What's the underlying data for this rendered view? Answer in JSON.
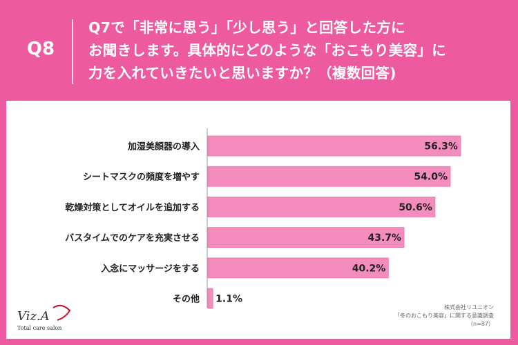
{
  "header": {
    "question_number": "Q8",
    "question_text": "Q7で「非常に思う」「少し思う」と回答した方に\nお聞きします。具体的にどのような「おこもり美容」に\n力を入れていきたいと思いますか？（複数回答)"
  },
  "colors": {
    "background": "#ed5aa0",
    "bar_fill": "#f48cbe",
    "bar_stroke": "#ee6fa8",
    "panel": "#ffffff"
  },
  "chart_data": {
    "type": "bar",
    "orientation": "horizontal",
    "categories": [
      "加湿美顔器の導入",
      "シートマスクの頻度を増やす",
      "乾燥対策としてオイルを追加する",
      "バスタイムでのケアを充実させる",
      "入念にマッサージをする",
      "その他"
    ],
    "values": [
      56.3,
      54.0,
      50.6,
      43.7,
      40.2,
      1.1
    ],
    "value_labels": [
      "56.3%",
      "54.0%",
      "50.6%",
      "43.7%",
      "40.2%",
      "1.1%"
    ],
    "unit": "%",
    "xlim": [
      0,
      60
    ],
    "grid": false,
    "legend": "none",
    "title": "",
    "xlabel": "",
    "ylabel": ""
  },
  "source": {
    "company": "株式会社リユニオン",
    "survey": "「冬のおこもり美容」に関する意識調査",
    "sample": "（n=87）"
  },
  "logo": {
    "main": "Viz.A",
    "sub": "Total care salon"
  }
}
